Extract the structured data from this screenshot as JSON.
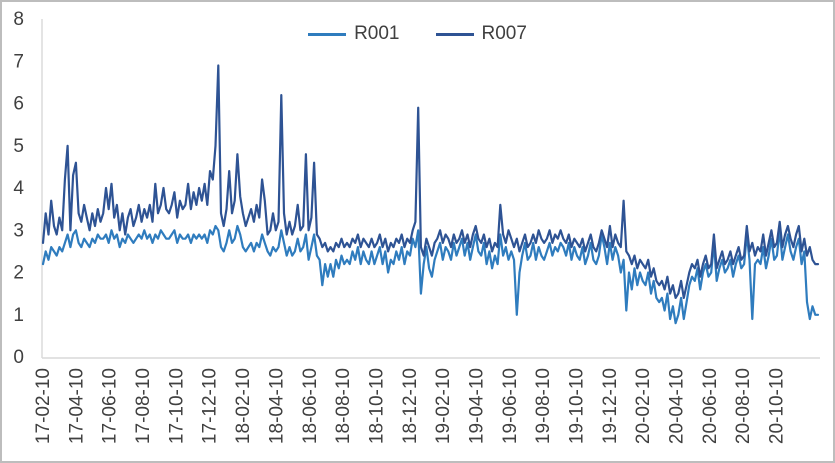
{
  "chart_data": {
    "type": "line",
    "title": "",
    "xlabel": "",
    "ylabel": "",
    "ylim": [
      0,
      8
    ],
    "y_ticks": [
      0,
      1,
      2,
      3,
      4,
      5,
      6,
      7,
      8
    ],
    "x_ticks": [
      "17-02-10",
      "17-04-10",
      "17-06-10",
      "17-08-10",
      "17-10-10",
      "17-12-10",
      "18-02-10",
      "18-04-10",
      "18-06-10",
      "18-08-10",
      "18-10-10",
      "18-12-10",
      "19-02-10",
      "19-04-10",
      "19-06-10",
      "19-08-10",
      "19-10-10",
      "19-12-10",
      "20-02-10",
      "20-04-10",
      "20-06-10",
      "20-08-10",
      "20-10-10"
    ],
    "points_per_tick": 12.176,
    "interval_days": 5,
    "grid": false,
    "legend_position": "top-center",
    "colors": {
      "axis": "#D9D9D9",
      "text": "#404040",
      "frame_border": "#BDBDBD",
      "background": "#FFFFFF"
    },
    "series": [
      {
        "name": "R001",
        "color": "#2F7CBE",
        "values": [
          2.2,
          2.5,
          2.3,
          2.6,
          2.5,
          2.4,
          2.6,
          2.5,
          2.7,
          2.9,
          2.6,
          2.9,
          3.0,
          2.7,
          2.6,
          2.8,
          2.7,
          2.6,
          2.8,
          2.7,
          2.9,
          2.8,
          2.8,
          2.9,
          2.7,
          3.0,
          2.8,
          2.9,
          2.6,
          2.8,
          2.7,
          2.9,
          2.8,
          2.7,
          2.8,
          2.9,
          2.8,
          3.0,
          2.8,
          2.9,
          2.7,
          2.9,
          2.8,
          3.0,
          2.9,
          2.8,
          2.8,
          2.9,
          3.0,
          2.7,
          2.9,
          2.8,
          2.8,
          2.9,
          2.7,
          2.9,
          2.8,
          2.9,
          2.8,
          2.9,
          2.7,
          3.0,
          2.9,
          3.1,
          3.0,
          2.6,
          2.5,
          2.7,
          3.0,
          2.7,
          2.8,
          3.1,
          2.9,
          2.6,
          2.5,
          2.6,
          2.7,
          2.5,
          2.7,
          2.6,
          2.9,
          2.7,
          2.5,
          2.4,
          2.6,
          2.5,
          2.6,
          3.0,
          2.7,
          2.4,
          2.6,
          2.4,
          2.5,
          2.8,
          2.5,
          2.6,
          2.9,
          2.3,
          2.6,
          2.9,
          2.4,
          2.3,
          1.7,
          2.2,
          1.9,
          2.2,
          1.9,
          2.3,
          2.1,
          2.4,
          2.2,
          2.3,
          2.2,
          2.5,
          2.3,
          2.6,
          2.2,
          2.5,
          2.3,
          2.2,
          2.5,
          2.2,
          2.4,
          2.6,
          2.2,
          2.5,
          2.0,
          2.3,
          2.2,
          2.5,
          2.3,
          2.6,
          2.2,
          2.5,
          2.4,
          2.8,
          2.6,
          3.0,
          1.5,
          2.2,
          2.6,
          2.1,
          1.9,
          2.3,
          2.5,
          2.7,
          2.3,
          2.6,
          2.5,
          2.3,
          2.7,
          2.4,
          2.6,
          2.8,
          2.4,
          2.7,
          2.3,
          2.6,
          2.9,
          2.5,
          2.4,
          2.7,
          2.2,
          2.5,
          2.1,
          2.4,
          2.2,
          2.9,
          2.4,
          2.6,
          2.3,
          2.5,
          2.3,
          1.0,
          2.0,
          2.4,
          2.7,
          2.3,
          2.4,
          2.7,
          2.3,
          2.6,
          2.4,
          2.3,
          2.5,
          2.7,
          2.4,
          2.6,
          2.5,
          2.7,
          2.6,
          2.4,
          2.7,
          2.3,
          2.6,
          2.4,
          2.3,
          2.6,
          2.2,
          2.4,
          2.7,
          2.3,
          2.2,
          2.4,
          2.9,
          2.6,
          2.2,
          2.7,
          2.3,
          2.6,
          2.4,
          2.0,
          2.3,
          1.1,
          2.0,
          1.6,
          2.1,
          1.7,
          2.0,
          1.8,
          1.7,
          2.0,
          1.5,
          1.8,
          1.4,
          1.3,
          1.4,
          1.1,
          1.5,
          0.9,
          1.2,
          0.8,
          1.0,
          1.4,
          0.9,
          1.3,
          1.7,
          1.9,
          1.8,
          2.1,
          1.6,
          2.0,
          2.2,
          1.9,
          2.0,
          2.7,
          1.8,
          2.1,
          2.3,
          2.0,
          2.1,
          2.3,
          1.9,
          2.2,
          2.4,
          2.1,
          2.2,
          2.9,
          2.3,
          0.9,
          2.2,
          2.3,
          2.2,
          2.6,
          2.1,
          2.4,
          2.8,
          2.3,
          2.4,
          3.0,
          2.3,
          2.6,
          2.9,
          2.5,
          2.3,
          2.6,
          2.8,
          2.2,
          2.5,
          1.3,
          0.9,
          1.2,
          1.0,
          1.0
        ]
      },
      {
        "name": "R007",
        "color": "#2E5394",
        "values": [
          2.7,
          3.4,
          2.9,
          3.7,
          3.1,
          2.9,
          3.3,
          3.0,
          4.2,
          5.0,
          3.0,
          4.3,
          4.6,
          3.4,
          3.2,
          3.6,
          3.3,
          3.0,
          3.4,
          3.1,
          3.5,
          3.2,
          3.4,
          4.0,
          3.5,
          4.1,
          3.3,
          3.6,
          3.0,
          3.4,
          2.9,
          3.3,
          3.5,
          3.1,
          3.3,
          3.6,
          3.2,
          3.5,
          3.3,
          3.6,
          3.2,
          4.1,
          3.4,
          3.6,
          4.0,
          3.5,
          3.4,
          3.6,
          3.9,
          3.3,
          3.7,
          3.5,
          3.6,
          4.1,
          3.5,
          3.9,
          3.6,
          4.0,
          3.7,
          4.1,
          3.6,
          4.4,
          4.2,
          5.0,
          6.9,
          3.4,
          3.1,
          3.5,
          4.4,
          3.4,
          3.7,
          4.8,
          3.8,
          3.4,
          3.1,
          3.3,
          3.5,
          3.2,
          3.6,
          3.3,
          4.2,
          3.7,
          2.9,
          3.0,
          3.4,
          3.0,
          3.2,
          6.2,
          3.4,
          2.9,
          3.2,
          2.9,
          3.1,
          3.6,
          3.0,
          3.1,
          4.8,
          3.0,
          3.3,
          4.6,
          2.9,
          2.8,
          2.6,
          2.7,
          2.5,
          2.6,
          2.5,
          2.7,
          2.6,
          2.8,
          2.6,
          2.7,
          2.6,
          2.8,
          2.7,
          2.9,
          2.6,
          2.8,
          2.7,
          2.6,
          2.8,
          2.6,
          2.7,
          2.9,
          2.6,
          2.8,
          2.5,
          2.7,
          2.6,
          2.8,
          2.7,
          2.9,
          2.6,
          2.8,
          2.7,
          3.0,
          3.2,
          5.9,
          2.6,
          2.4,
          2.8,
          2.6,
          2.4,
          2.7,
          2.8,
          3.0,
          2.7,
          2.9,
          2.8,
          2.6,
          2.9,
          2.7,
          2.8,
          3.0,
          2.7,
          2.9,
          2.6,
          2.9,
          3.1,
          2.8,
          2.7,
          2.9,
          2.6,
          2.8,
          2.5,
          2.7,
          2.6,
          3.6,
          2.9,
          2.7,
          3.0,
          2.8,
          2.6,
          2.8,
          2.5,
          2.7,
          2.9,
          2.6,
          2.7,
          2.9,
          2.7,
          3.0,
          2.8,
          2.7,
          2.8,
          3.0,
          2.7,
          2.9,
          2.8,
          3.0,
          2.8,
          2.7,
          2.9,
          2.6,
          2.8,
          2.7,
          2.6,
          2.8,
          2.5,
          2.7,
          2.9,
          2.6,
          2.5,
          2.7,
          3.0,
          2.8,
          2.6,
          3.1,
          2.6,
          2.9,
          2.7,
          2.6,
          3.7,
          2.5,
          2.4,
          2.2,
          2.4,
          2.1,
          2.3,
          2.2,
          2.1,
          2.3,
          1.9,
          2.1,
          1.8,
          1.7,
          1.8,
          1.6,
          1.9,
          1.5,
          1.7,
          1.4,
          1.5,
          1.8,
          1.4,
          1.7,
          2.0,
          2.2,
          2.1,
          2.3,
          1.9,
          2.2,
          2.4,
          2.1,
          2.2,
          2.9,
          2.1,
          2.3,
          2.5,
          2.2,
          2.3,
          2.5,
          2.2,
          2.4,
          2.6,
          2.3,
          2.4,
          3.1,
          2.5,
          2.7,
          2.4,
          2.6,
          2.5,
          2.9,
          2.4,
          2.7,
          3.0,
          2.6,
          2.7,
          3.2,
          2.6,
          2.9,
          3.1,
          2.8,
          2.6,
          2.9,
          3.1,
          2.5,
          2.8,
          2.4,
          2.6,
          2.3,
          2.2,
          2.2
        ]
      }
    ]
  }
}
